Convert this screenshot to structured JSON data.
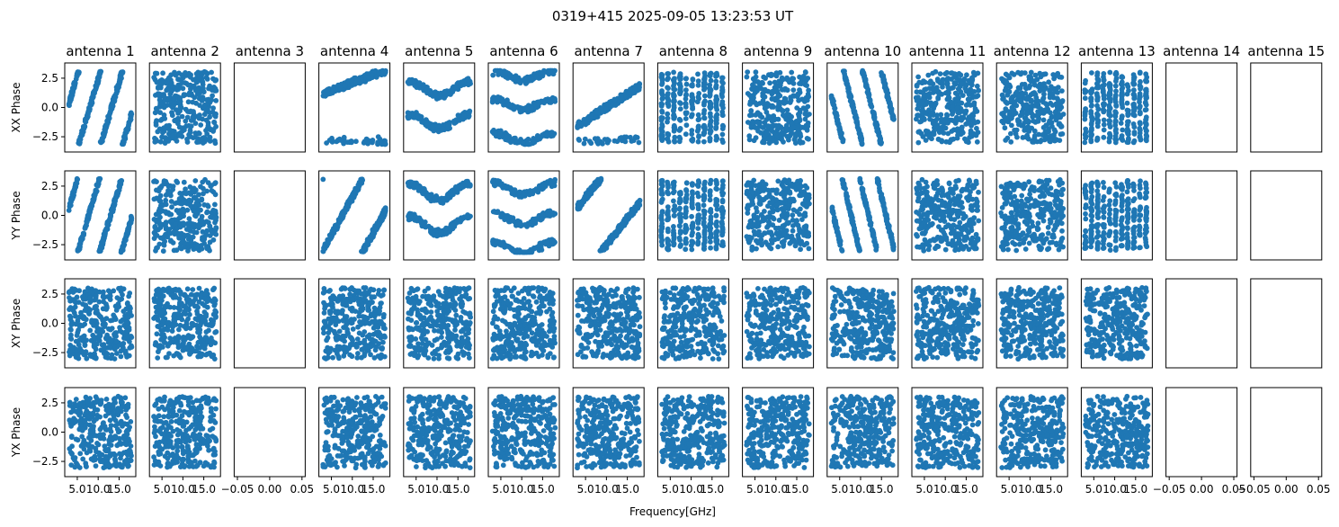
{
  "chart_data": {
    "type": "scatter",
    "title": "0319+415 2025-09-05 13:23:53 UT",
    "xlabel": "Frequency[GHz]",
    "columns": [
      "antenna 1",
      "antenna 2",
      "antenna 3",
      "antenna 4",
      "antenna 5",
      "antenna 6",
      "antenna 7",
      "antenna 8",
      "antenna 9",
      "antenna 10",
      "antenna 11",
      "antenna 12",
      "antenna 13",
      "antenna 14",
      "antenna 15"
    ],
    "rows": [
      "XX Phase",
      "YY Phase",
      "XY Phase",
      "YX Phase"
    ],
    "ylim": [
      -3.8,
      3.8
    ],
    "yticks": [
      -2.5,
      0.0,
      2.5
    ],
    "ytick_labels": [
      "−2.5",
      "0.0",
      "2.5"
    ],
    "xlim_data": [
      2,
      19
    ],
    "xticks_data": [
      5,
      10,
      15
    ],
    "xtick_labels_data": [
      "5.0",
      "10.0",
      "15.0"
    ],
    "xlim_empty": [
      -0.055,
      0.055
    ],
    "xticks_empty": [
      -0.05,
      0,
      0.05
    ],
    "xtick_labels_empty": [
      "−0.05",
      "0.00",
      "0.05"
    ],
    "marker_color": "#1f77b4",
    "antennas_with_data": [
      1,
      2,
      4,
      5,
      6,
      7,
      8,
      9,
      10,
      11,
      12,
      13
    ],
    "empty_antennas": [
      3,
      14,
      15
    ],
    "phase_patterns": {
      "XX Phase": [
        {
          "antenna": 1,
          "kind": "wrap",
          "slope": 1.2,
          "offset": 0.3
        },
        {
          "antenna": 2,
          "kind": "noise"
        },
        {
          "antenna": 4,
          "kind": "tilt",
          "slope": 0.22,
          "offset": 1.2
        },
        {
          "antenna": 5,
          "kind": "bands",
          "centers": [
            1.6,
            -1.2
          ],
          "width": 0.6
        },
        {
          "antenna": 6,
          "kind": "bands",
          "centers": [
            2.7,
            0.3,
            -2.6
          ],
          "width": 0.4
        },
        {
          "antenna": 7,
          "kind": "tilt",
          "slope": 0.38,
          "offset": -1.6
        },
        {
          "antenna": 8,
          "kind": "stripes"
        },
        {
          "antenna": 9,
          "kind": "noise"
        },
        {
          "antenna": 10,
          "kind": "wrap",
          "slope": -1.4,
          "offset": 1.0
        },
        {
          "antenna": 11,
          "kind": "noise"
        },
        {
          "antenna": 12,
          "kind": "noise"
        },
        {
          "antenna": 13,
          "kind": "stripes"
        }
      ],
      "YY Phase": [
        {
          "antenna": 1,
          "kind": "wrap",
          "slope": 1.2,
          "offset": 0.6
        },
        {
          "antenna": 2,
          "kind": "noise"
        },
        {
          "antenna": 4,
          "kind": "wrap",
          "slope": 0.65,
          "offset": -3.0
        },
        {
          "antenna": 5,
          "kind": "bands",
          "centers": [
            2.0,
            -0.8
          ],
          "width": 0.7
        },
        {
          "antenna": 6,
          "kind": "bands",
          "centers": [
            2.3,
            -0.3,
            -2.8
          ],
          "width": 0.5
        },
        {
          "antenna": 7,
          "kind": "wrap",
          "slope": 0.45,
          "offset": 0.6
        },
        {
          "antenna": 8,
          "kind": "stripes"
        },
        {
          "antenna": 9,
          "kind": "noise"
        },
        {
          "antenna": 10,
          "kind": "wrap",
          "slope": -1.5,
          "offset": 0.8
        },
        {
          "antenna": 11,
          "kind": "noise"
        },
        {
          "antenna": 12,
          "kind": "noise"
        },
        {
          "antenna": 13,
          "kind": "stripes"
        }
      ],
      "XY Phase": [
        {
          "antenna": 1,
          "kind": "noise"
        },
        {
          "antenna": 2,
          "kind": "noise"
        },
        {
          "antenna": 4,
          "kind": "noise"
        },
        {
          "antenna": 5,
          "kind": "noise"
        },
        {
          "antenna": 6,
          "kind": "noise"
        },
        {
          "antenna": 7,
          "kind": "noise"
        },
        {
          "antenna": 8,
          "kind": "noise"
        },
        {
          "antenna": 9,
          "kind": "noise"
        },
        {
          "antenna": 10,
          "kind": "noise"
        },
        {
          "antenna": 11,
          "kind": "noise"
        },
        {
          "antenna": 12,
          "kind": "noise"
        },
        {
          "antenna": 13,
          "kind": "noise"
        }
      ],
      "YX Phase": [
        {
          "antenna": 1,
          "kind": "noise"
        },
        {
          "antenna": 2,
          "kind": "noise"
        },
        {
          "antenna": 4,
          "kind": "noise"
        },
        {
          "antenna": 5,
          "kind": "noise"
        },
        {
          "antenna": 6,
          "kind": "noise"
        },
        {
          "antenna": 7,
          "kind": "noise"
        },
        {
          "antenna": 8,
          "kind": "noise"
        },
        {
          "antenna": 9,
          "kind": "noise"
        },
        {
          "antenna": 10,
          "kind": "noise"
        },
        {
          "antenna": 11,
          "kind": "noise"
        },
        {
          "antenna": 12,
          "kind": "noise"
        },
        {
          "antenna": 13,
          "kind": "noise"
        }
      ]
    }
  }
}
